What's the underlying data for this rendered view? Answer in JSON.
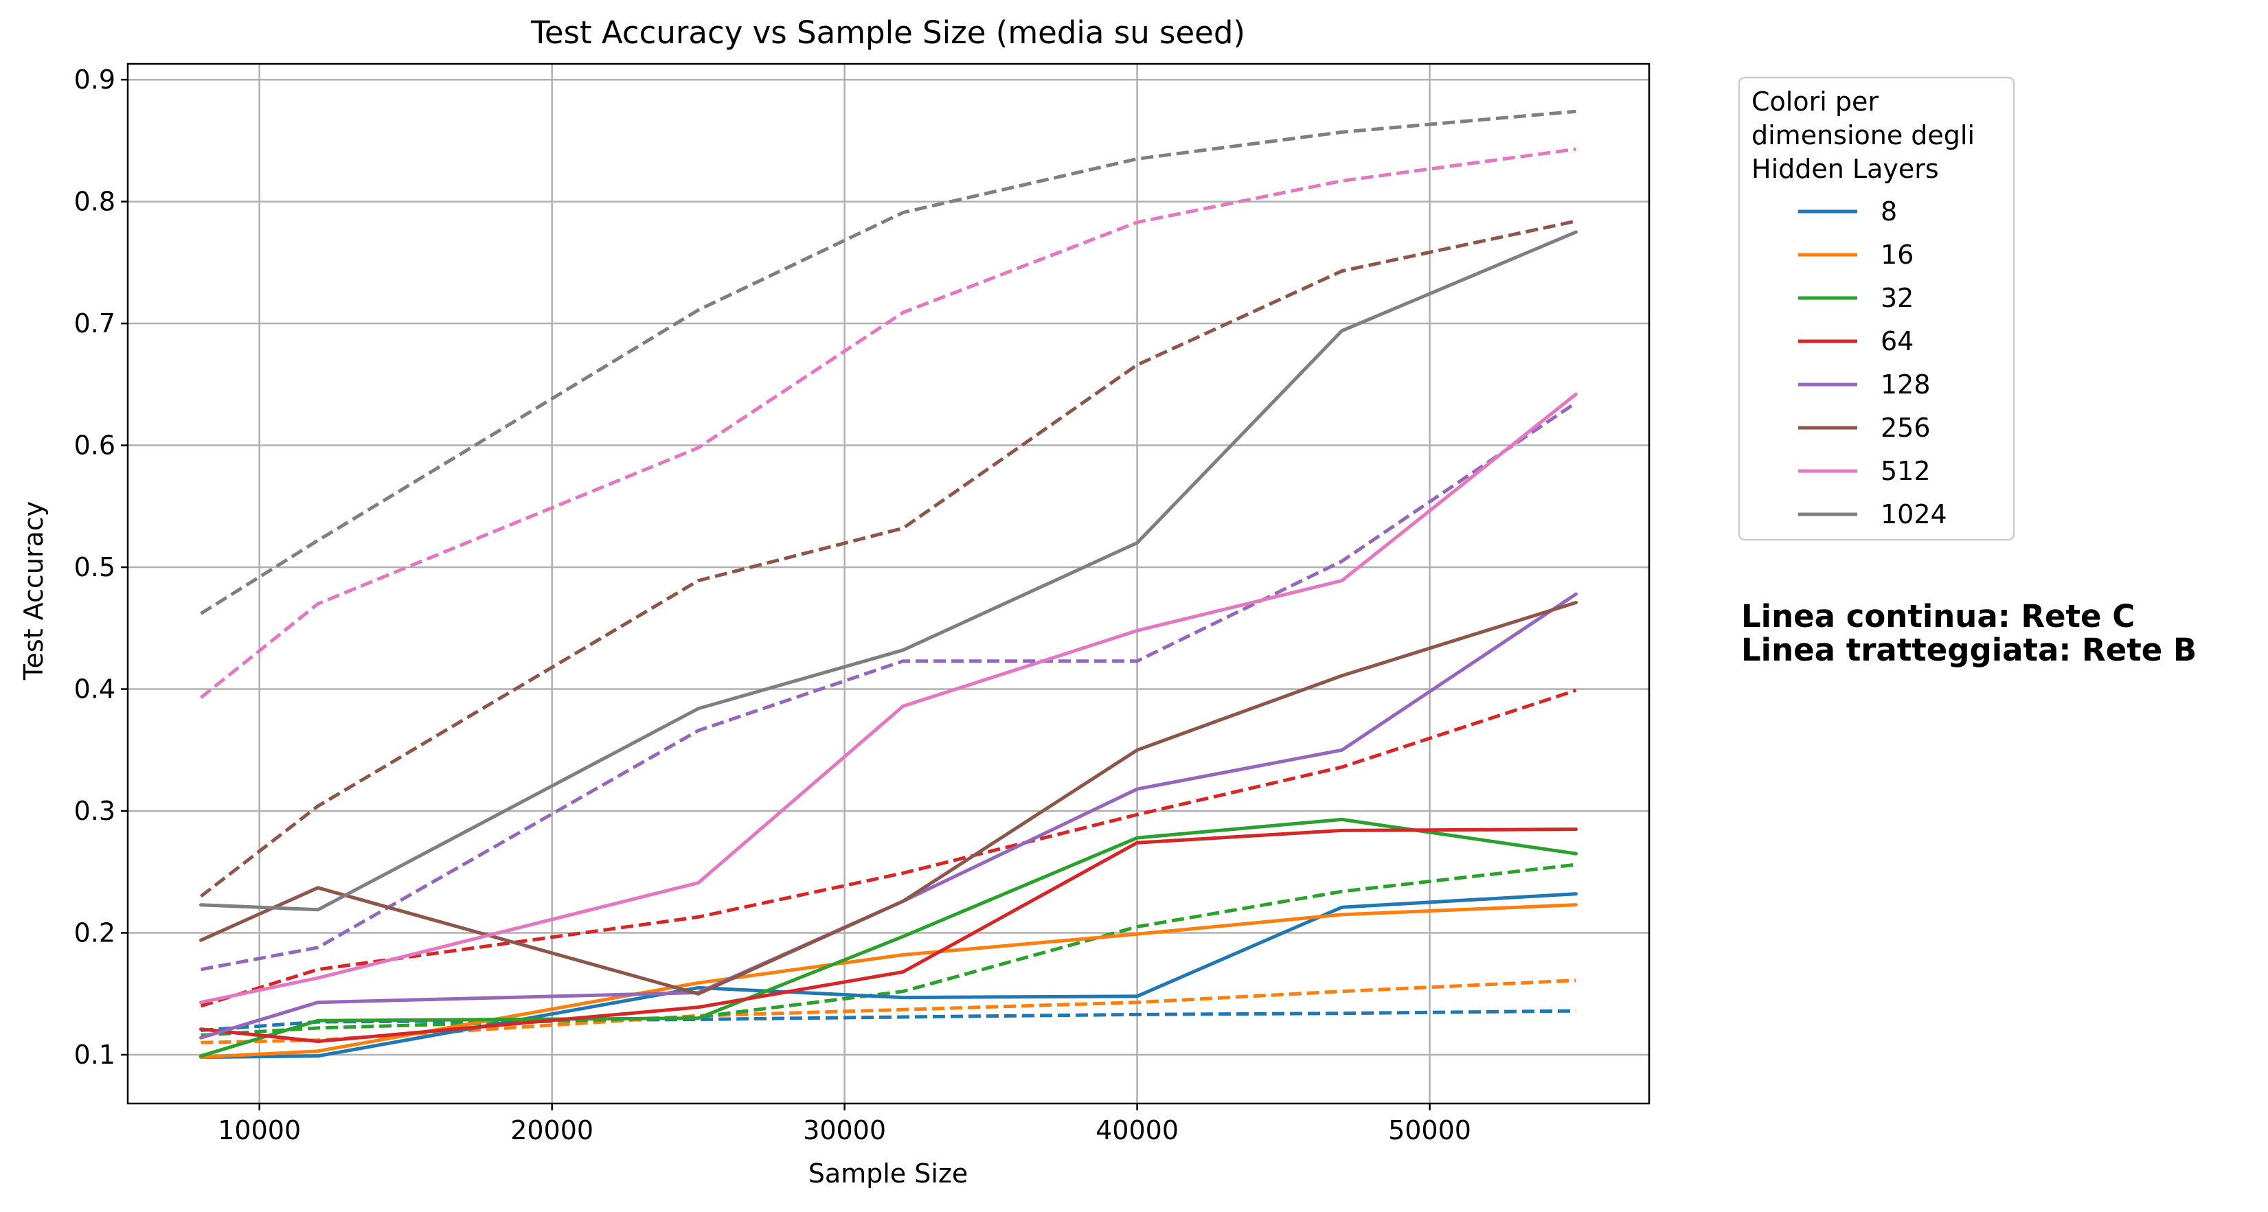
{
  "chart_data": {
    "type": "line",
    "title": "Test Accuracy vs Sample Size (media su seed)",
    "xlabel": "Sample Size",
    "ylabel": "Test Accuracy",
    "xlim": [
      5500,
      57500
    ],
    "ylim": [
      0.06,
      0.913
    ],
    "xticks": [
      10000,
      20000,
      30000,
      40000,
      50000
    ],
    "yticks": [
      0.1,
      0.2,
      0.3,
      0.4,
      0.5,
      0.6,
      0.7,
      0.8,
      0.9
    ],
    "grid": true,
    "legend_position": "outside-right",
    "legend_title": [
      "Colori per",
      "dimensione degli",
      "Hidden Layers"
    ],
    "notes": [
      "Linea continua: Rete C",
      "Linea tratteggiata: Rete B"
    ],
    "x": [
      8000,
      12000,
      25000,
      32000,
      40000,
      47000,
      55000
    ],
    "series": [
      {
        "name": "8",
        "color": "#1f77b4",
        "rete_c": [
          0.098,
          0.099,
          0.155,
          0.147,
          0.148,
          0.221,
          0.232
        ],
        "rete_b": [
          0.12,
          0.127,
          0.129,
          0.131,
          0.133,
          0.134,
          0.136
        ]
      },
      {
        "name": "16",
        "color": "#ff7f0e",
        "rete_c": [
          0.098,
          0.103,
          0.159,
          0.182,
          0.199,
          0.215,
          0.223
        ],
        "rete_b": [
          0.11,
          0.112,
          0.132,
          0.137,
          0.143,
          0.152,
          0.161
        ]
      },
      {
        "name": "32",
        "color": "#2ca02c",
        "rete_c": [
          0.099,
          0.128,
          0.13,
          0.197,
          0.278,
          0.293,
          0.265
        ],
        "rete_b": [
          0.116,
          0.122,
          0.131,
          0.152,
          0.205,
          0.234,
          0.256
        ]
      },
      {
        "name": "64",
        "color": "#d62728",
        "rete_c": [
          0.121,
          0.111,
          0.139,
          0.168,
          0.274,
          0.284,
          0.285
        ],
        "rete_b": [
          0.14,
          0.17,
          0.213,
          0.249,
          0.297,
          0.336,
          0.399
        ]
      },
      {
        "name": "128",
        "color": "#9467bd",
        "rete_c": [
          0.114,
          0.143,
          0.151,
          0.226,
          0.318,
          0.35,
          0.478
        ],
        "rete_b": [
          0.17,
          0.188,
          0.366,
          0.423,
          0.423,
          0.505,
          0.635
        ]
      },
      {
        "name": "256",
        "color": "#8c564b",
        "rete_c": [
          0.194,
          0.237,
          0.15,
          0.226,
          0.35,
          0.411,
          0.471
        ],
        "rete_b": [
          0.23,
          0.304,
          0.489,
          0.532,
          0.666,
          0.743,
          0.784
        ]
      },
      {
        "name": "512",
        "color": "#e377c2",
        "rete_c": [
          0.143,
          0.163,
          0.241,
          0.386,
          0.448,
          0.489,
          0.642
        ],
        "rete_b": [
          0.393,
          0.47,
          0.598,
          0.709,
          0.783,
          0.817,
          0.843
        ]
      },
      {
        "name": "1024",
        "color": "#7f7f7f",
        "rete_c": [
          0.223,
          0.219,
          0.384,
          0.432,
          0.52,
          0.694,
          0.775
        ],
        "rete_b": [
          0.462,
          0.522,
          0.711,
          0.791,
          0.835,
          0.857,
          0.874
        ]
      }
    ]
  }
}
